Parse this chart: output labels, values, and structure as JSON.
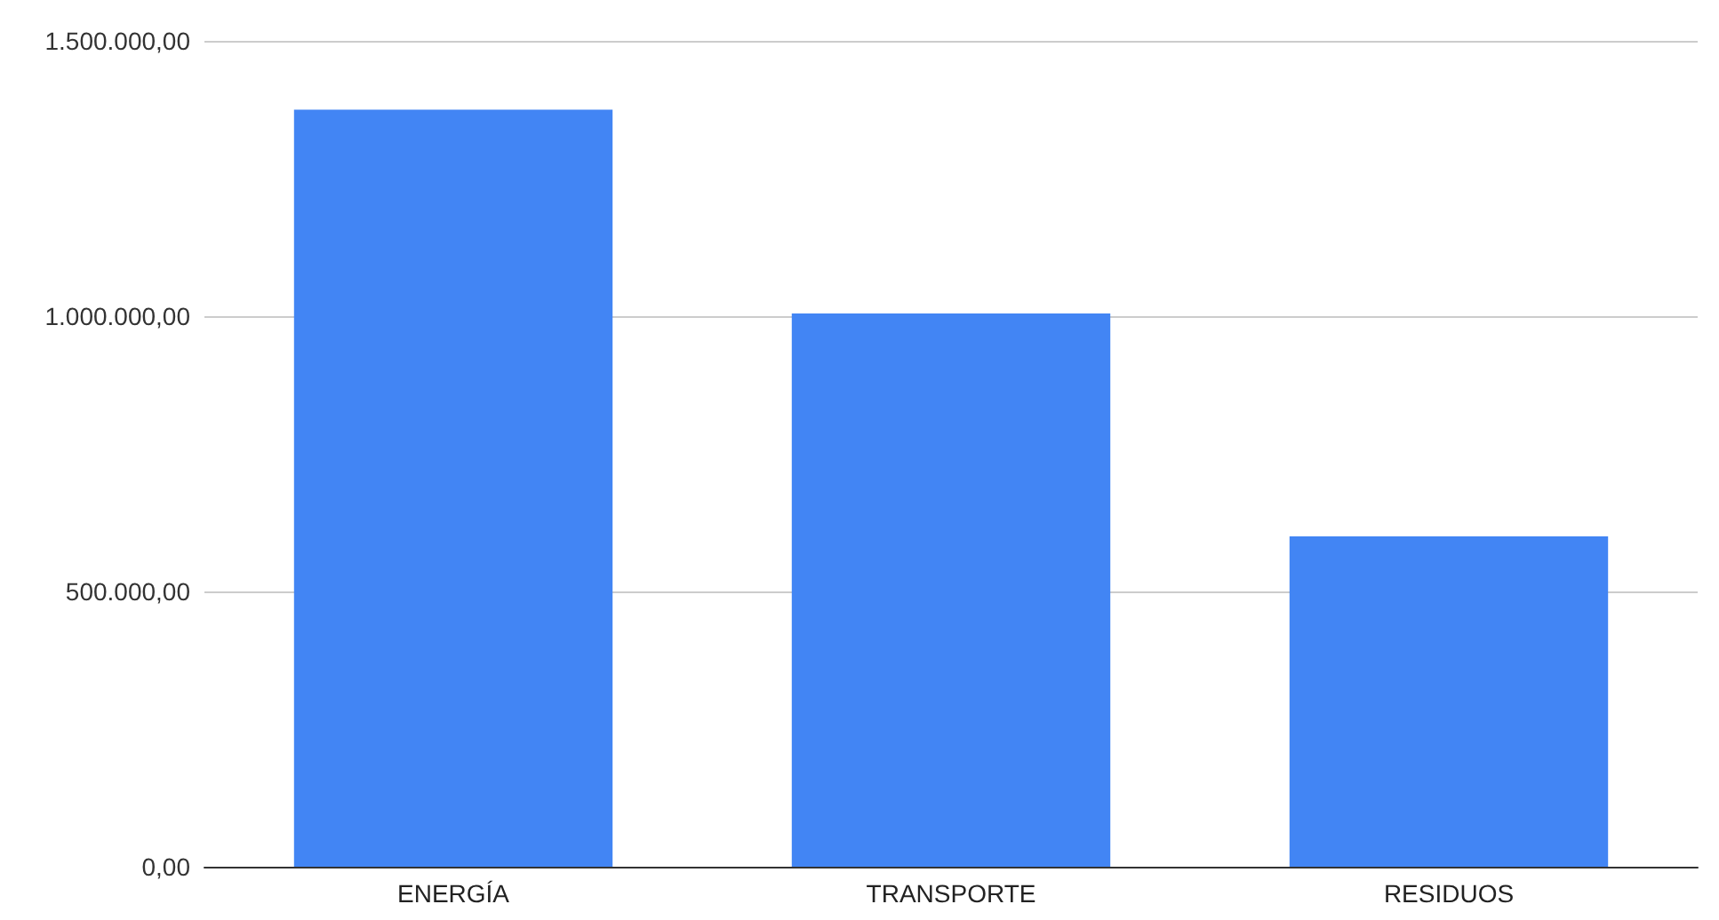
{
  "chart_data": {
    "type": "bar",
    "categories": [
      "ENERGÍA",
      "TRANSPORTE",
      "RESIDUOS"
    ],
    "values": [
      1375000,
      1005000,
      600000
    ],
    "color": "#4285f4",
    "ylim": [
      0,
      1500000
    ],
    "yticks": [
      {
        "value": 0,
        "label": "0,00"
      },
      {
        "value": 500000,
        "label": "500.000,00"
      },
      {
        "value": 1000000,
        "label": "1.000.000,00"
      },
      {
        "value": 1500000,
        "label": "1.500.000,00"
      }
    ],
    "grid": "y"
  }
}
